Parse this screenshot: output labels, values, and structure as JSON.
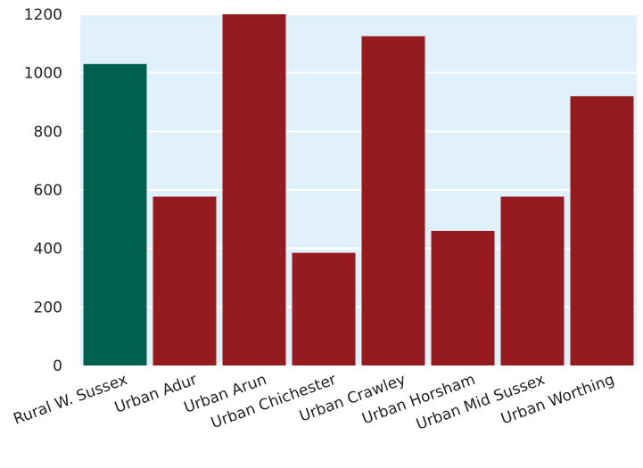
{
  "chart_data": {
    "type": "bar",
    "title": "",
    "xlabel": "",
    "ylabel": "",
    "categories": [
      "Rural W. Sussex",
      "Urban Adur",
      "Urban Arun",
      "Urban Chichester",
      "Urban Crawley",
      "Urban Horsham",
      "Urban Mid Sussex",
      "Urban Worthing"
    ],
    "values": [
      1030,
      577,
      1200,
      385,
      1125,
      460,
      577,
      920
    ],
    "colors": [
      "#005f4f",
      "#961b1f",
      "#961b1f",
      "#961b1f",
      "#961b1f",
      "#961b1f",
      "#961b1f",
      "#961b1f"
    ],
    "ylim": [
      0,
      1200
    ],
    "yticks": [
      0,
      200,
      400,
      600,
      800,
      1000,
      1200
    ],
    "grid": true,
    "legend": "none",
    "background": "#e0f1fb",
    "gridline_color": "#ffffff"
  }
}
